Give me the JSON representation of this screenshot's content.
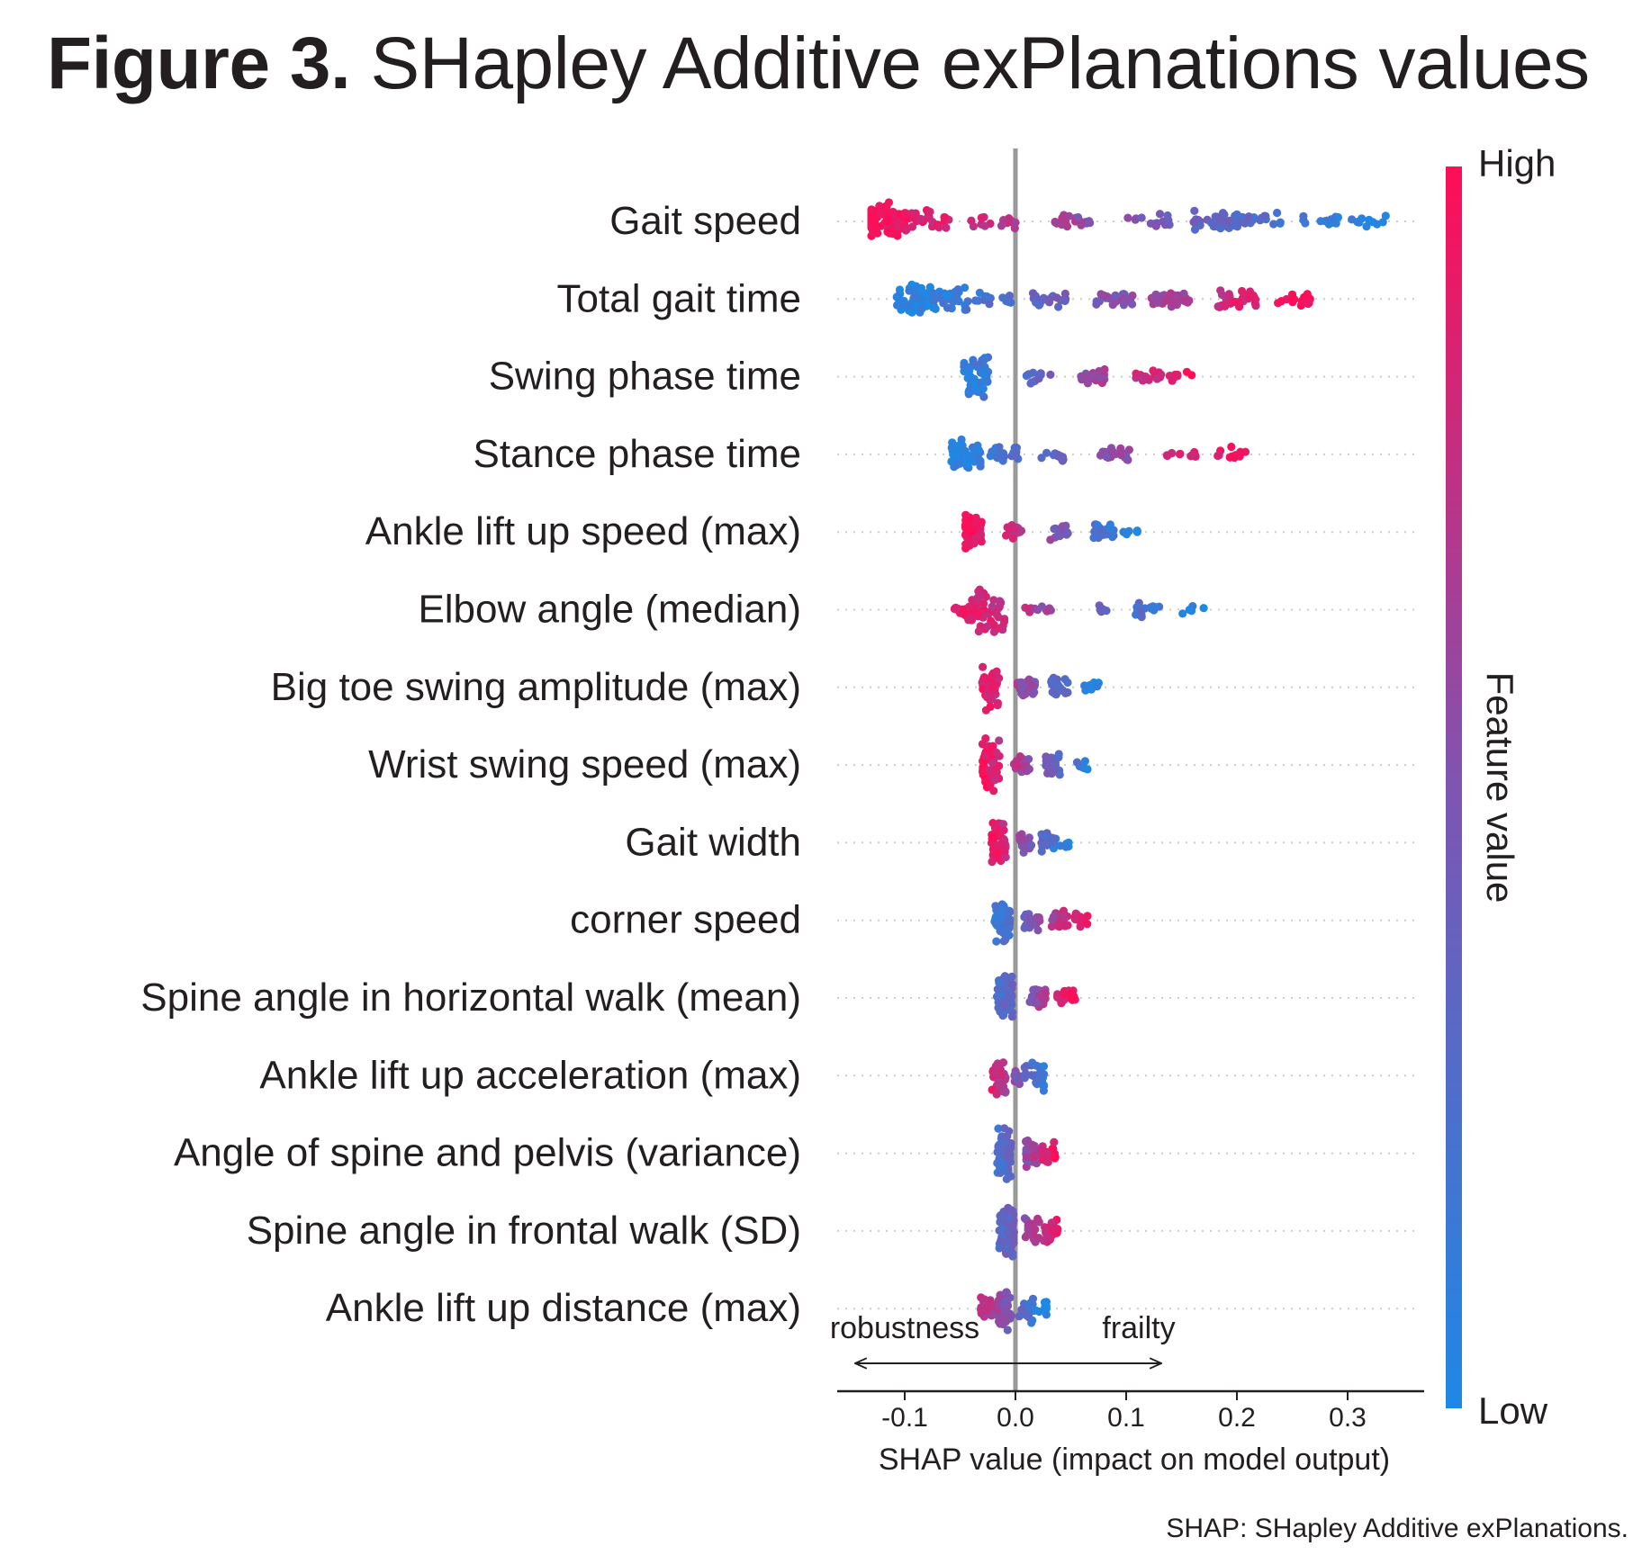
{
  "figure": {
    "number_label": "Figure 3.",
    "title": "SHapley Additive exPlanations values",
    "footnote": "SHAP: SHapley Additive exPlanations."
  },
  "chart_data": {
    "type": "scatter",
    "subtype": "shap-beeswarm",
    "xlabel": "SHAP value (impact on model output)",
    "xlim": [
      -0.16,
      0.36
    ],
    "xticks": [
      -0.1,
      0.0,
      0.1,
      0.2,
      0.3
    ],
    "xtick_labels": [
      "-0.1",
      "0.0",
      "0.1",
      "0.2",
      "0.3"
    ],
    "zero_line": 0.0,
    "direction_labels": {
      "left": "robustness",
      "right": "frailty"
    },
    "colorbar": {
      "label": "Feature value",
      "high_label": "High",
      "low_label": "Low",
      "high_color": "#ff0d57",
      "mid_color": "#7e55b1",
      "low_color": "#1e88e5"
    },
    "features": [
      {
        "name": "Gait speed",
        "min": -0.13,
        "max": 0.34,
        "trend": "high-left",
        "clusters": [
          [
            -0.12,
            0.55,
            90
          ],
          [
            -0.08,
            0.3,
            30
          ],
          [
            -0.02,
            0.15,
            20
          ],
          [
            0.05,
            0.1,
            20
          ],
          [
            0.12,
            0.1,
            15
          ],
          [
            0.18,
            0.25,
            40
          ],
          [
            0.22,
            0.15,
            25
          ],
          [
            0.28,
            0.06,
            12
          ],
          [
            0.32,
            0.05,
            10
          ]
        ]
      },
      {
        "name": "Total gait time",
        "min": -0.11,
        "max": 0.27,
        "trend": "high-right",
        "clusters": [
          [
            -0.09,
            0.4,
            60
          ],
          [
            -0.06,
            0.3,
            40
          ],
          [
            -0.02,
            0.1,
            15
          ],
          [
            0.03,
            0.12,
            25
          ],
          [
            0.09,
            0.12,
            25
          ],
          [
            0.14,
            0.18,
            30
          ],
          [
            0.2,
            0.25,
            30
          ],
          [
            0.25,
            0.12,
            15
          ]
        ]
      },
      {
        "name": "Swing phase time",
        "min": -0.06,
        "max": 0.16,
        "trend": "high-right",
        "clusters": [
          [
            -0.035,
            0.7,
            50
          ],
          [
            0.02,
            0.08,
            12
          ],
          [
            0.07,
            0.15,
            25
          ],
          [
            0.12,
            0.12,
            20
          ],
          [
            0.15,
            0.08,
            10
          ]
        ]
      },
      {
        "name": "Stance phase time",
        "min": -0.065,
        "max": 0.21,
        "trend": "high-right",
        "clusters": [
          [
            -0.045,
            0.7,
            55
          ],
          [
            -0.01,
            0.15,
            20
          ],
          [
            0.03,
            0.08,
            12
          ],
          [
            0.09,
            0.1,
            20
          ],
          [
            0.15,
            0.08,
            12
          ],
          [
            0.195,
            0.1,
            12
          ]
        ]
      },
      {
        "name": "Ankle lift up speed (max)",
        "min": -0.045,
        "max": 0.11,
        "trend": "high-left",
        "clusters": [
          [
            -0.04,
            0.8,
            45
          ],
          [
            0.0,
            0.1,
            18
          ],
          [
            0.04,
            0.12,
            20
          ],
          [
            0.08,
            0.15,
            22
          ],
          [
            0.105,
            0.06,
            6
          ]
        ]
      },
      {
        "name": "Elbow angle (median)",
        "min": -0.065,
        "max": 0.17,
        "trend": "high-left",
        "clusters": [
          [
            -0.045,
            0.25,
            30
          ],
          [
            -0.022,
            0.8,
            45
          ],
          [
            0.02,
            0.06,
            10
          ],
          [
            0.07,
            0.05,
            5
          ],
          [
            0.12,
            0.12,
            16
          ],
          [
            0.16,
            0.05,
            5
          ]
        ]
      },
      {
        "name": "Big toe swing amplitude (max)",
        "min": -0.04,
        "max": 0.075,
        "trend": "high-left",
        "clusters": [
          [
            -0.022,
            0.8,
            55
          ],
          [
            0.01,
            0.2,
            25
          ],
          [
            0.04,
            0.2,
            25
          ],
          [
            0.07,
            0.06,
            8
          ]
        ]
      },
      {
        "name": "Wrist swing speed (max)",
        "min": -0.035,
        "max": 0.075,
        "trend": "high-left",
        "clusters": [
          [
            -0.022,
            0.85,
            60
          ],
          [
            0.005,
            0.2,
            25
          ],
          [
            0.035,
            0.35,
            25
          ],
          [
            0.06,
            0.05,
            8
          ]
        ]
      },
      {
        "name": "Gait width",
        "min": -0.025,
        "max": 0.048,
        "trend": "high-left",
        "clusters": [
          [
            -0.015,
            0.75,
            50
          ],
          [
            0.01,
            0.2,
            20
          ],
          [
            0.03,
            0.25,
            25
          ],
          [
            0.045,
            0.06,
            6
          ]
        ]
      },
      {
        "name": "corner speed",
        "min": -0.03,
        "max": 0.065,
        "trend": "high-right",
        "clusters": [
          [
            -0.012,
            0.75,
            55
          ],
          [
            0.015,
            0.2,
            22
          ],
          [
            0.04,
            0.2,
            25
          ],
          [
            0.06,
            0.1,
            12
          ]
        ]
      },
      {
        "name": "Spine angle in horizontal walk (mean)",
        "min": -0.04,
        "max": 0.058,
        "trend": "high-right",
        "clusters": [
          [
            -0.01,
            0.8,
            60
          ],
          [
            0.02,
            0.25,
            25
          ],
          [
            0.045,
            0.15,
            18
          ],
          [
            0.055,
            0.06,
            6
          ]
        ]
      },
      {
        "name": "Ankle lift up acceleration (max)",
        "min": -0.03,
        "max": 0.03,
        "trend": "high-left",
        "clusters": [
          [
            -0.015,
            0.7,
            45
          ],
          [
            0.005,
            0.2,
            15
          ],
          [
            0.02,
            0.45,
            30
          ]
        ]
      },
      {
        "name": "Angle of spine and pelvis (variance)",
        "min": -0.03,
        "max": 0.04,
        "trend": "high-right",
        "clusters": [
          [
            -0.01,
            0.9,
            90
          ],
          [
            0.015,
            0.4,
            30
          ],
          [
            0.03,
            0.3,
            20
          ]
        ]
      },
      {
        "name": "Spine angle in frontal walk (SD)",
        "min": -0.035,
        "max": 0.043,
        "trend": "high-right",
        "clusters": [
          [
            -0.008,
            0.9,
            90
          ],
          [
            0.015,
            0.3,
            25
          ],
          [
            0.032,
            0.3,
            25
          ]
        ]
      },
      {
        "name": "Ankle lift up distance (max)",
        "min": -0.045,
        "max": 0.028,
        "trend": "high-left",
        "clusters": [
          [
            -0.025,
            0.3,
            25
          ],
          [
            -0.01,
            0.75,
            40
          ],
          [
            0.01,
            0.45,
            25
          ],
          [
            0.025,
            0.12,
            8
          ]
        ]
      }
    ]
  }
}
